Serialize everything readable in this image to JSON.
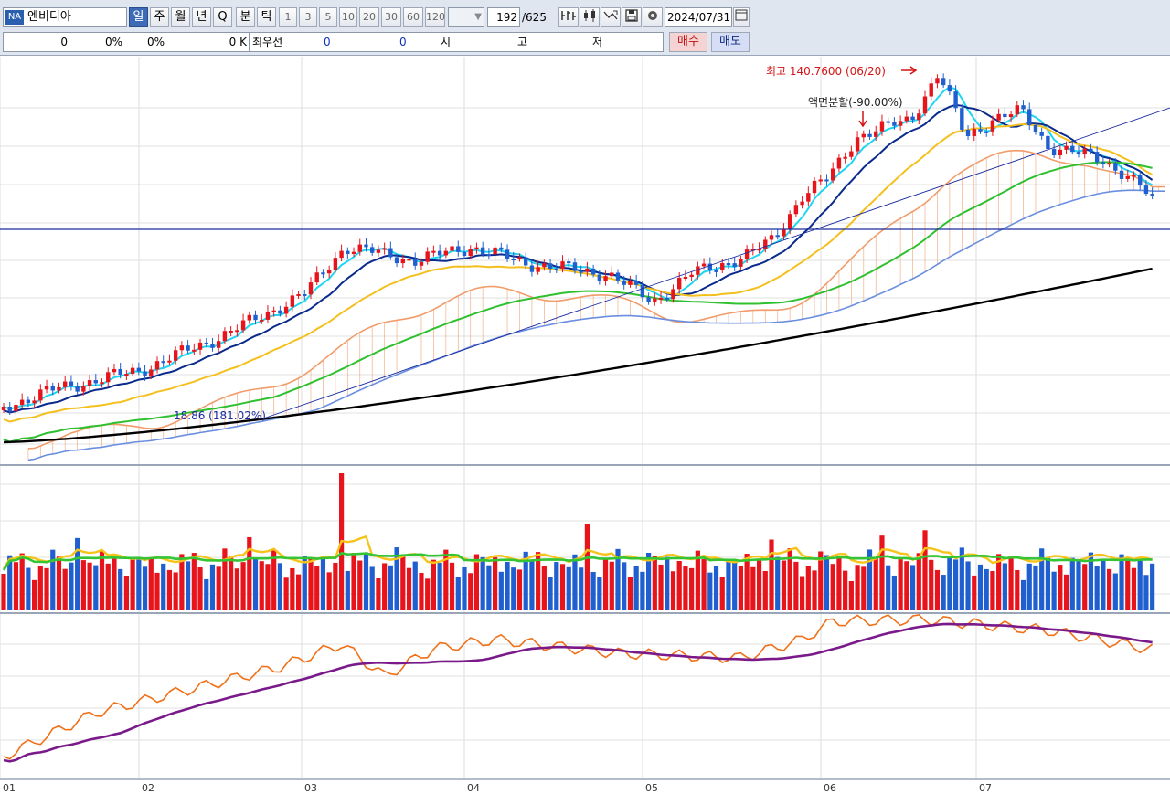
{
  "toolbar": {
    "logo_text": "NA",
    "symbol_name": "엔비디아",
    "period_tabs": [
      "일",
      "주",
      "월",
      "년",
      "Q",
      "분",
      "틱"
    ],
    "selected_tab": "일",
    "minute_options": [
      "1",
      "3",
      "5",
      "10",
      "20",
      "30",
      "60",
      "120"
    ],
    "count_value": "192",
    "count_total": "/625",
    "date_value": "2024/07/31",
    "icons": [
      "chart-type-icon",
      "candle-icon",
      "compare-icon",
      "save-icon",
      "settings-icon",
      "calendar-icon"
    ]
  },
  "quote_row": {
    "price": "0",
    "change_pct": "0%",
    "change_pct2": "0%",
    "volume": "0 K",
    "best_label": "최우선",
    "best_bid": "0",
    "best_ask": "0",
    "open_label": "시",
    "high_label": "고",
    "low_label": "저",
    "buy_label": "매수",
    "sell_label": "매도"
  },
  "annotations": {
    "high_label": "최고 140.7600 (06/20)",
    "split_label": "액면분할(-90.00%)",
    "low_label": "18.86 (181.02%)"
  },
  "x_axis_labels": [
    "01",
    "02",
    "03",
    "04",
    "05",
    "06",
    "07"
  ],
  "colors": {
    "up": "#e8141c",
    "down": "#1f5fd0",
    "ma5": "#1fd6f0",
    "ma10": "#0a2a8c",
    "ma20": "#f4c01e",
    "ma60": "#2fc02f",
    "ma120": "#000000",
    "cloud_upper": "#f19c6a",
    "cloud_lower": "#6b8fe0",
    "obv": "#f07018",
    "obv_signal": "#7a1a8a",
    "toolbar_bg": "#dfe6f0",
    "buy": "#f7d0d0",
    "sell": "#d0dcf7"
  }
}
